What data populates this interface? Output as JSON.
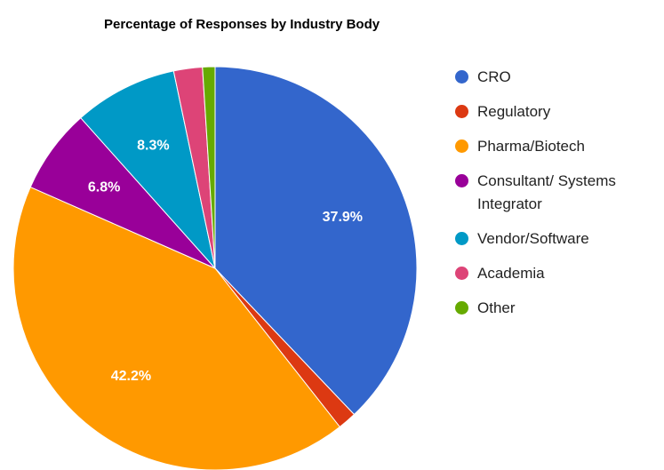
{
  "chart_data": {
    "type": "pie",
    "title": "Percentage of Responses by Industry Body",
    "categories": [
      "CRO",
      "Regulatory",
      "Pharma/Biotech",
      "Consultant/ Systems Integrator",
      "Vendor/Software",
      "Academia",
      "Other"
    ],
    "values": [
      37.9,
      1.5,
      42.2,
      6.8,
      8.3,
      2.3,
      1.0
    ],
    "value_labels": [
      "37.9%",
      null,
      "42.2%",
      "6.8%",
      "8.3%",
      null,
      null
    ],
    "colors": [
      "#3366cc",
      "#dc3912",
      "#ff9900",
      "#990099",
      "#0099c6",
      "#dd4477",
      "#66aa00"
    ],
    "legend": "right"
  }
}
